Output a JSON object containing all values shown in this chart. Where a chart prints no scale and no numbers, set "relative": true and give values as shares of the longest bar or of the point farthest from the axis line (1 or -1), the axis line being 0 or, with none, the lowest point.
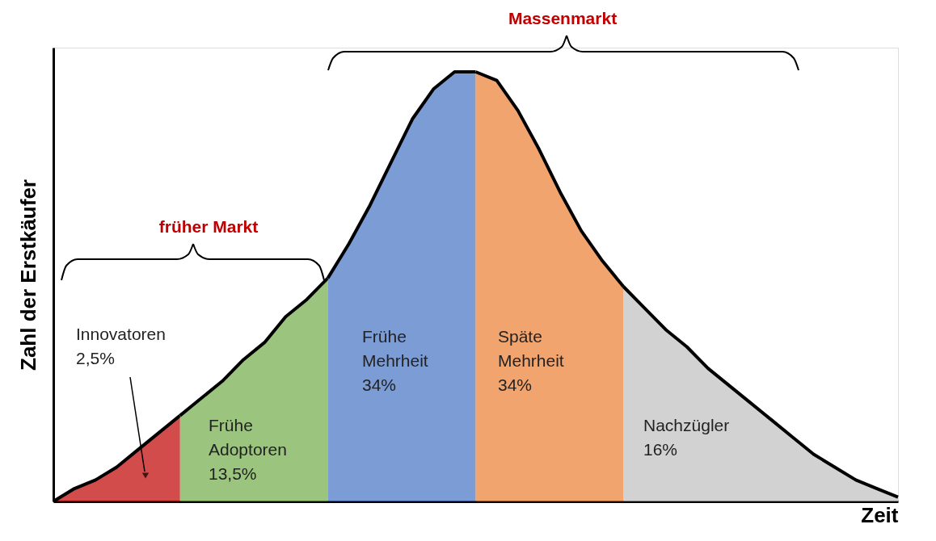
{
  "chart_data": {
    "type": "area",
    "relative": true,
    "xlabel": "Zeit",
    "ylabel": "Zahl der Erstkäufer",
    "categories": [
      null,
      null,
      null,
      null,
      null,
      null,
      null,
      null,
      null,
      null,
      null,
      null,
      null,
      null,
      null,
      null,
      null,
      null,
      null,
      null,
      null,
      null,
      null,
      null,
      null,
      null,
      null,
      null,
      null,
      null,
      null,
      null,
      null,
      null,
      null,
      null,
      null,
      null,
      null,
      null,
      null
    ],
    "series": [
      {
        "color": "#c00000",
        "values": [
          0,
          0.03,
          0.05,
          0.08,
          0.12,
          0.16,
          0.2,
          null,
          null,
          null,
          null,
          null,
          null,
          null,
          null,
          null,
          null,
          null,
          null,
          null,
          null,
          null,
          null,
          null,
          null,
          null,
          null,
          null,
          null,
          null,
          null,
          null,
          null,
          null,
          null,
          null,
          null,
          null,
          null,
          null,
          null
        ]
      },
      {
        "color": "#70ad47",
        "values": [
          null,
          null,
          null,
          null,
          null,
          null,
          0.2,
          0.24,
          0.28,
          0.33,
          0.37,
          0.43,
          0.47,
          0.52,
          null,
          null,
          null,
          null,
          null,
          null,
          null,
          null,
          null,
          null,
          null,
          null,
          null,
          null,
          null,
          null,
          null,
          null,
          null,
          null,
          null,
          null,
          null,
          null,
          null,
          null,
          null
        ]
      },
      {
        "color": "#4472c4",
        "values": [
          null,
          null,
          null,
          null,
          null,
          null,
          null,
          null,
          null,
          null,
          null,
          null,
          null,
          0.52,
          0.6,
          0.69,
          0.79,
          0.89,
          0.96,
          1.0,
          1.0,
          null,
          null,
          null,
          null,
          null,
          null,
          null,
          null,
          null,
          null,
          null,
          null,
          null,
          null,
          null,
          null,
          null,
          null,
          null,
          null
        ]
      },
      {
        "color": "#ed7d31",
        "values": [
          null,
          null,
          null,
          null,
          null,
          null,
          null,
          null,
          null,
          null,
          null,
          null,
          null,
          null,
          null,
          null,
          null,
          null,
          null,
          null,
          1.0,
          0.98,
          0.91,
          0.82,
          0.72,
          0.63,
          0.56,
          0.5,
          null,
          null,
          null,
          null,
          null,
          null,
          null,
          null,
          null,
          null,
          null,
          null,
          null
        ]
      },
      {
        "color": "#bfbfbf",
        "values": [
          null,
          null,
          null,
          null,
          null,
          null,
          null,
          null,
          null,
          null,
          null,
          null,
          null,
          null,
          null,
          null,
          null,
          null,
          null,
          null,
          null,
          null,
          null,
          null,
          null,
          null,
          null,
          0.5,
          0.45,
          0.4,
          0.36,
          0.31,
          0.27,
          0.23,
          0.19,
          0.15,
          0.11,
          0.08,
          0.05,
          0.03,
          0.01
        ]
      }
    ],
    "annotations": [
      "Innovatoren\n2,5%",
      "Frühe\nAdoptoren\n13,5%",
      "Frühe\nMehrheit\n34%",
      "Späte\nMehrheit\n34%",
      "Nachzügler\n16%",
      "früher Markt",
      "Massenmarkt"
    ]
  }
}
